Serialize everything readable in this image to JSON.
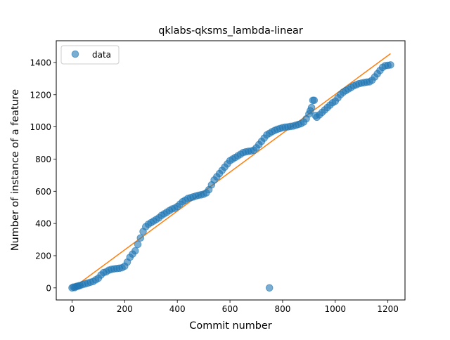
{
  "chart_data": {
    "type": "scatter",
    "title": "qklabs-qksms_lambda-linear",
    "xlabel": "Commit number",
    "ylabel": "Number of instance of a feature",
    "xlim": [
      -60,
      1265
    ],
    "ylim": [
      -75,
      1535
    ],
    "xticks": [
      0,
      200,
      400,
      600,
      800,
      1000,
      1200
    ],
    "yticks": [
      0,
      200,
      400,
      600,
      800,
      1000,
      1200,
      1400
    ],
    "grid": false,
    "legend": {
      "location": "upper left",
      "entries": [
        "data"
      ]
    },
    "series": [
      {
        "name": "data",
        "kind": "scatter",
        "color": "#1f77b4",
        "points": [
          [
            0,
            0
          ],
          [
            5,
            5
          ],
          [
            10,
            2
          ],
          [
            15,
            8
          ],
          [
            20,
            10
          ],
          [
            25,
            12
          ],
          [
            30,
            15
          ],
          [
            40,
            20
          ],
          [
            50,
            25
          ],
          [
            60,
            30
          ],
          [
            70,
            35
          ],
          [
            80,
            40
          ],
          [
            90,
            50
          ],
          [
            100,
            60
          ],
          [
            110,
            80
          ],
          [
            120,
            95
          ],
          [
            130,
            100
          ],
          [
            140,
            110
          ],
          [
            150,
            115
          ],
          [
            160,
            118
          ],
          [
            170,
            120
          ],
          [
            180,
            122
          ],
          [
            190,
            125
          ],
          [
            200,
            135
          ],
          [
            210,
            160
          ],
          [
            220,
            190
          ],
          [
            230,
            210
          ],
          [
            240,
            230
          ],
          [
            250,
            270
          ],
          [
            260,
            310
          ],
          [
            270,
            350
          ],
          [
            280,
            380
          ],
          [
            290,
            395
          ],
          [
            300,
            405
          ],
          [
            310,
            415
          ],
          [
            320,
            425
          ],
          [
            330,
            435
          ],
          [
            340,
            450
          ],
          [
            350,
            460
          ],
          [
            360,
            470
          ],
          [
            370,
            480
          ],
          [
            380,
            490
          ],
          [
            390,
            495
          ],
          [
            400,
            505
          ],
          [
            410,
            520
          ],
          [
            420,
            535
          ],
          [
            430,
            545
          ],
          [
            440,
            555
          ],
          [
            450,
            560
          ],
          [
            460,
            565
          ],
          [
            470,
            570
          ],
          [
            480,
            575
          ],
          [
            490,
            578
          ],
          [
            500,
            582
          ],
          [
            510,
            590
          ],
          [
            520,
            610
          ],
          [
            530,
            640
          ],
          [
            540,
            670
          ],
          [
            550,
            690
          ],
          [
            560,
            710
          ],
          [
            570,
            730
          ],
          [
            580,
            750
          ],
          [
            590,
            770
          ],
          [
            600,
            790
          ],
          [
            610,
            800
          ],
          [
            620,
            810
          ],
          [
            630,
            820
          ],
          [
            640,
            830
          ],
          [
            650,
            840
          ],
          [
            660,
            845
          ],
          [
            670,
            848
          ],
          [
            680,
            850
          ],
          [
            690,
            855
          ],
          [
            700,
            870
          ],
          [
            710,
            890
          ],
          [
            720,
            910
          ],
          [
            730,
            930
          ],
          [
            740,
            950
          ],
          [
            750,
            960
          ],
          [
            760,
            970
          ],
          [
            770,
            978
          ],
          [
            780,
            985
          ],
          [
            790,
            990
          ],
          [
            800,
            995
          ],
          [
            810,
            998
          ],
          [
            820,
            1000
          ],
          [
            830,
            1003
          ],
          [
            840,
            1005
          ],
          [
            850,
            1010
          ],
          [
            860,
            1015
          ],
          [
            870,
            1020
          ],
          [
            880,
            1030
          ],
          [
            890,
            1050
          ],
          [
            900,
            1080
          ],
          [
            905,
            1100
          ],
          [
            910,
            1120
          ],
          [
            915,
            1165
          ],
          [
            920,
            1165
          ],
          [
            925,
            1070
          ],
          [
            930,
            1060
          ],
          [
            940,
            1075
          ],
          [
            950,
            1090
          ],
          [
            960,
            1105
          ],
          [
            970,
            1120
          ],
          [
            980,
            1135
          ],
          [
            990,
            1150
          ],
          [
            1000,
            1160
          ],
          [
            1010,
            1180
          ],
          [
            1020,
            1200
          ],
          [
            1030,
            1215
          ],
          [
            1040,
            1225
          ],
          [
            1050,
            1235
          ],
          [
            1060,
            1245
          ],
          [
            1070,
            1255
          ],
          [
            1080,
            1262
          ],
          [
            1090,
            1268
          ],
          [
            1100,
            1272
          ],
          [
            1110,
            1275
          ],
          [
            1120,
            1278
          ],
          [
            1130,
            1280
          ],
          [
            1140,
            1290
          ],
          [
            1150,
            1310
          ],
          [
            1160,
            1330
          ],
          [
            1170,
            1350
          ],
          [
            1180,
            1370
          ],
          [
            1190,
            1380
          ],
          [
            1200,
            1382
          ],
          [
            1210,
            1385
          ],
          [
            750,
            0
          ]
        ]
      },
      {
        "kind": "line",
        "color": "#ff7f0e",
        "points": [
          [
            0,
            -5
          ],
          [
            1210,
            1455
          ]
        ]
      }
    ]
  }
}
